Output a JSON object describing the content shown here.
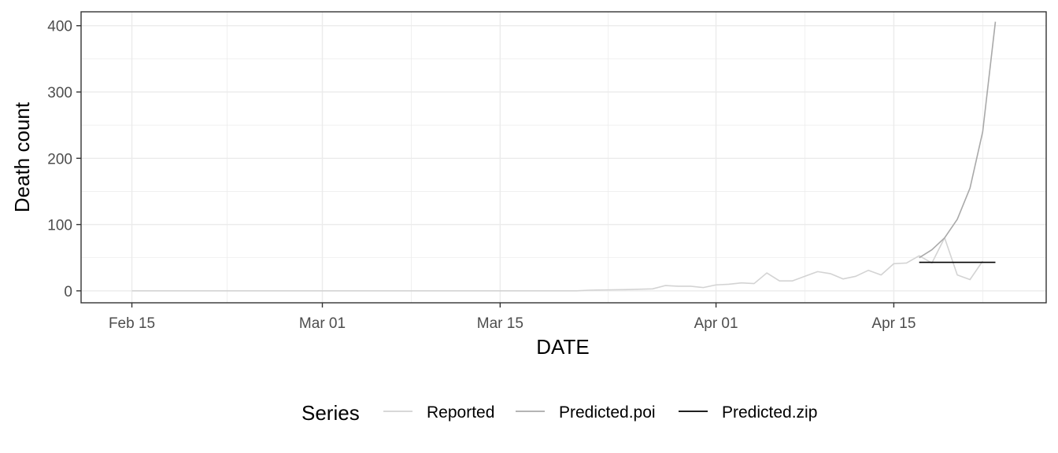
{
  "chart_data": {
    "type": "line",
    "xlabel": "DATE",
    "ylabel": "Death count",
    "xlim": [
      "2020-02-11",
      "2020-04-27"
    ],
    "ylim": [
      -18,
      421
    ],
    "x_ticks": [
      {
        "date": "2020-02-15",
        "label": "Feb 15"
      },
      {
        "date": "2020-03-01",
        "label": "Mar 01"
      },
      {
        "date": "2020-03-15",
        "label": "Mar 15"
      },
      {
        "date": "2020-04-01",
        "label": "Apr 01"
      },
      {
        "date": "2020-04-15",
        "label": "Apr 15"
      }
    ],
    "y_ticks": [
      0,
      100,
      200,
      300,
      400
    ],
    "grid": true,
    "legend": {
      "title": "Series",
      "position": "bottom"
    },
    "series": [
      {
        "name": "Reported",
        "color": "#d3d3d3",
        "points": [
          [
            "2020-02-15",
            0
          ],
          [
            "2020-02-20",
            0
          ],
          [
            "2020-02-25",
            0
          ],
          [
            "2020-03-01",
            0
          ],
          [
            "2020-03-06",
            0
          ],
          [
            "2020-03-11",
            0
          ],
          [
            "2020-03-16",
            0
          ],
          [
            "2020-03-21",
            0
          ],
          [
            "2020-03-22",
            1
          ],
          [
            "2020-03-25",
            2
          ],
          [
            "2020-03-27",
            3
          ],
          [
            "2020-03-28",
            8
          ],
          [
            "2020-03-29",
            7
          ],
          [
            "2020-03-30",
            7
          ],
          [
            "2020-03-31",
            5
          ],
          [
            "2020-04-01",
            9
          ],
          [
            "2020-04-02",
            10
          ],
          [
            "2020-04-03",
            12
          ],
          [
            "2020-04-04",
            11
          ],
          [
            "2020-04-05",
            27
          ],
          [
            "2020-04-06",
            15
          ],
          [
            "2020-04-07",
            15
          ],
          [
            "2020-04-08",
            22
          ],
          [
            "2020-04-09",
            29
          ],
          [
            "2020-04-10",
            26
          ],
          [
            "2020-04-11",
            18
          ],
          [
            "2020-04-12",
            22
          ],
          [
            "2020-04-13",
            31
          ],
          [
            "2020-04-14",
            24
          ],
          [
            "2020-04-15",
            41
          ],
          [
            "2020-04-16",
            42
          ],
          [
            "2020-04-17",
            53
          ],
          [
            "2020-04-18",
            42
          ],
          [
            "2020-04-19",
            80
          ],
          [
            "2020-04-20",
            24
          ],
          [
            "2020-04-21",
            17
          ],
          [
            "2020-04-22",
            45
          ]
        ]
      },
      {
        "name": "Predicted.poi",
        "color": "#a9a9a9",
        "points": [
          [
            "2020-04-17",
            50
          ],
          [
            "2020-04-18",
            62
          ],
          [
            "2020-04-19",
            80
          ],
          [
            "2020-04-20",
            108
          ],
          [
            "2020-04-21",
            155
          ],
          [
            "2020-04-22",
            240
          ],
          [
            "2020-04-23",
            406
          ]
        ]
      },
      {
        "name": "Predicted.zip",
        "color": "#000000",
        "points": [
          [
            "2020-04-17",
            43
          ],
          [
            "2020-04-23",
            43
          ]
        ]
      }
    ]
  }
}
